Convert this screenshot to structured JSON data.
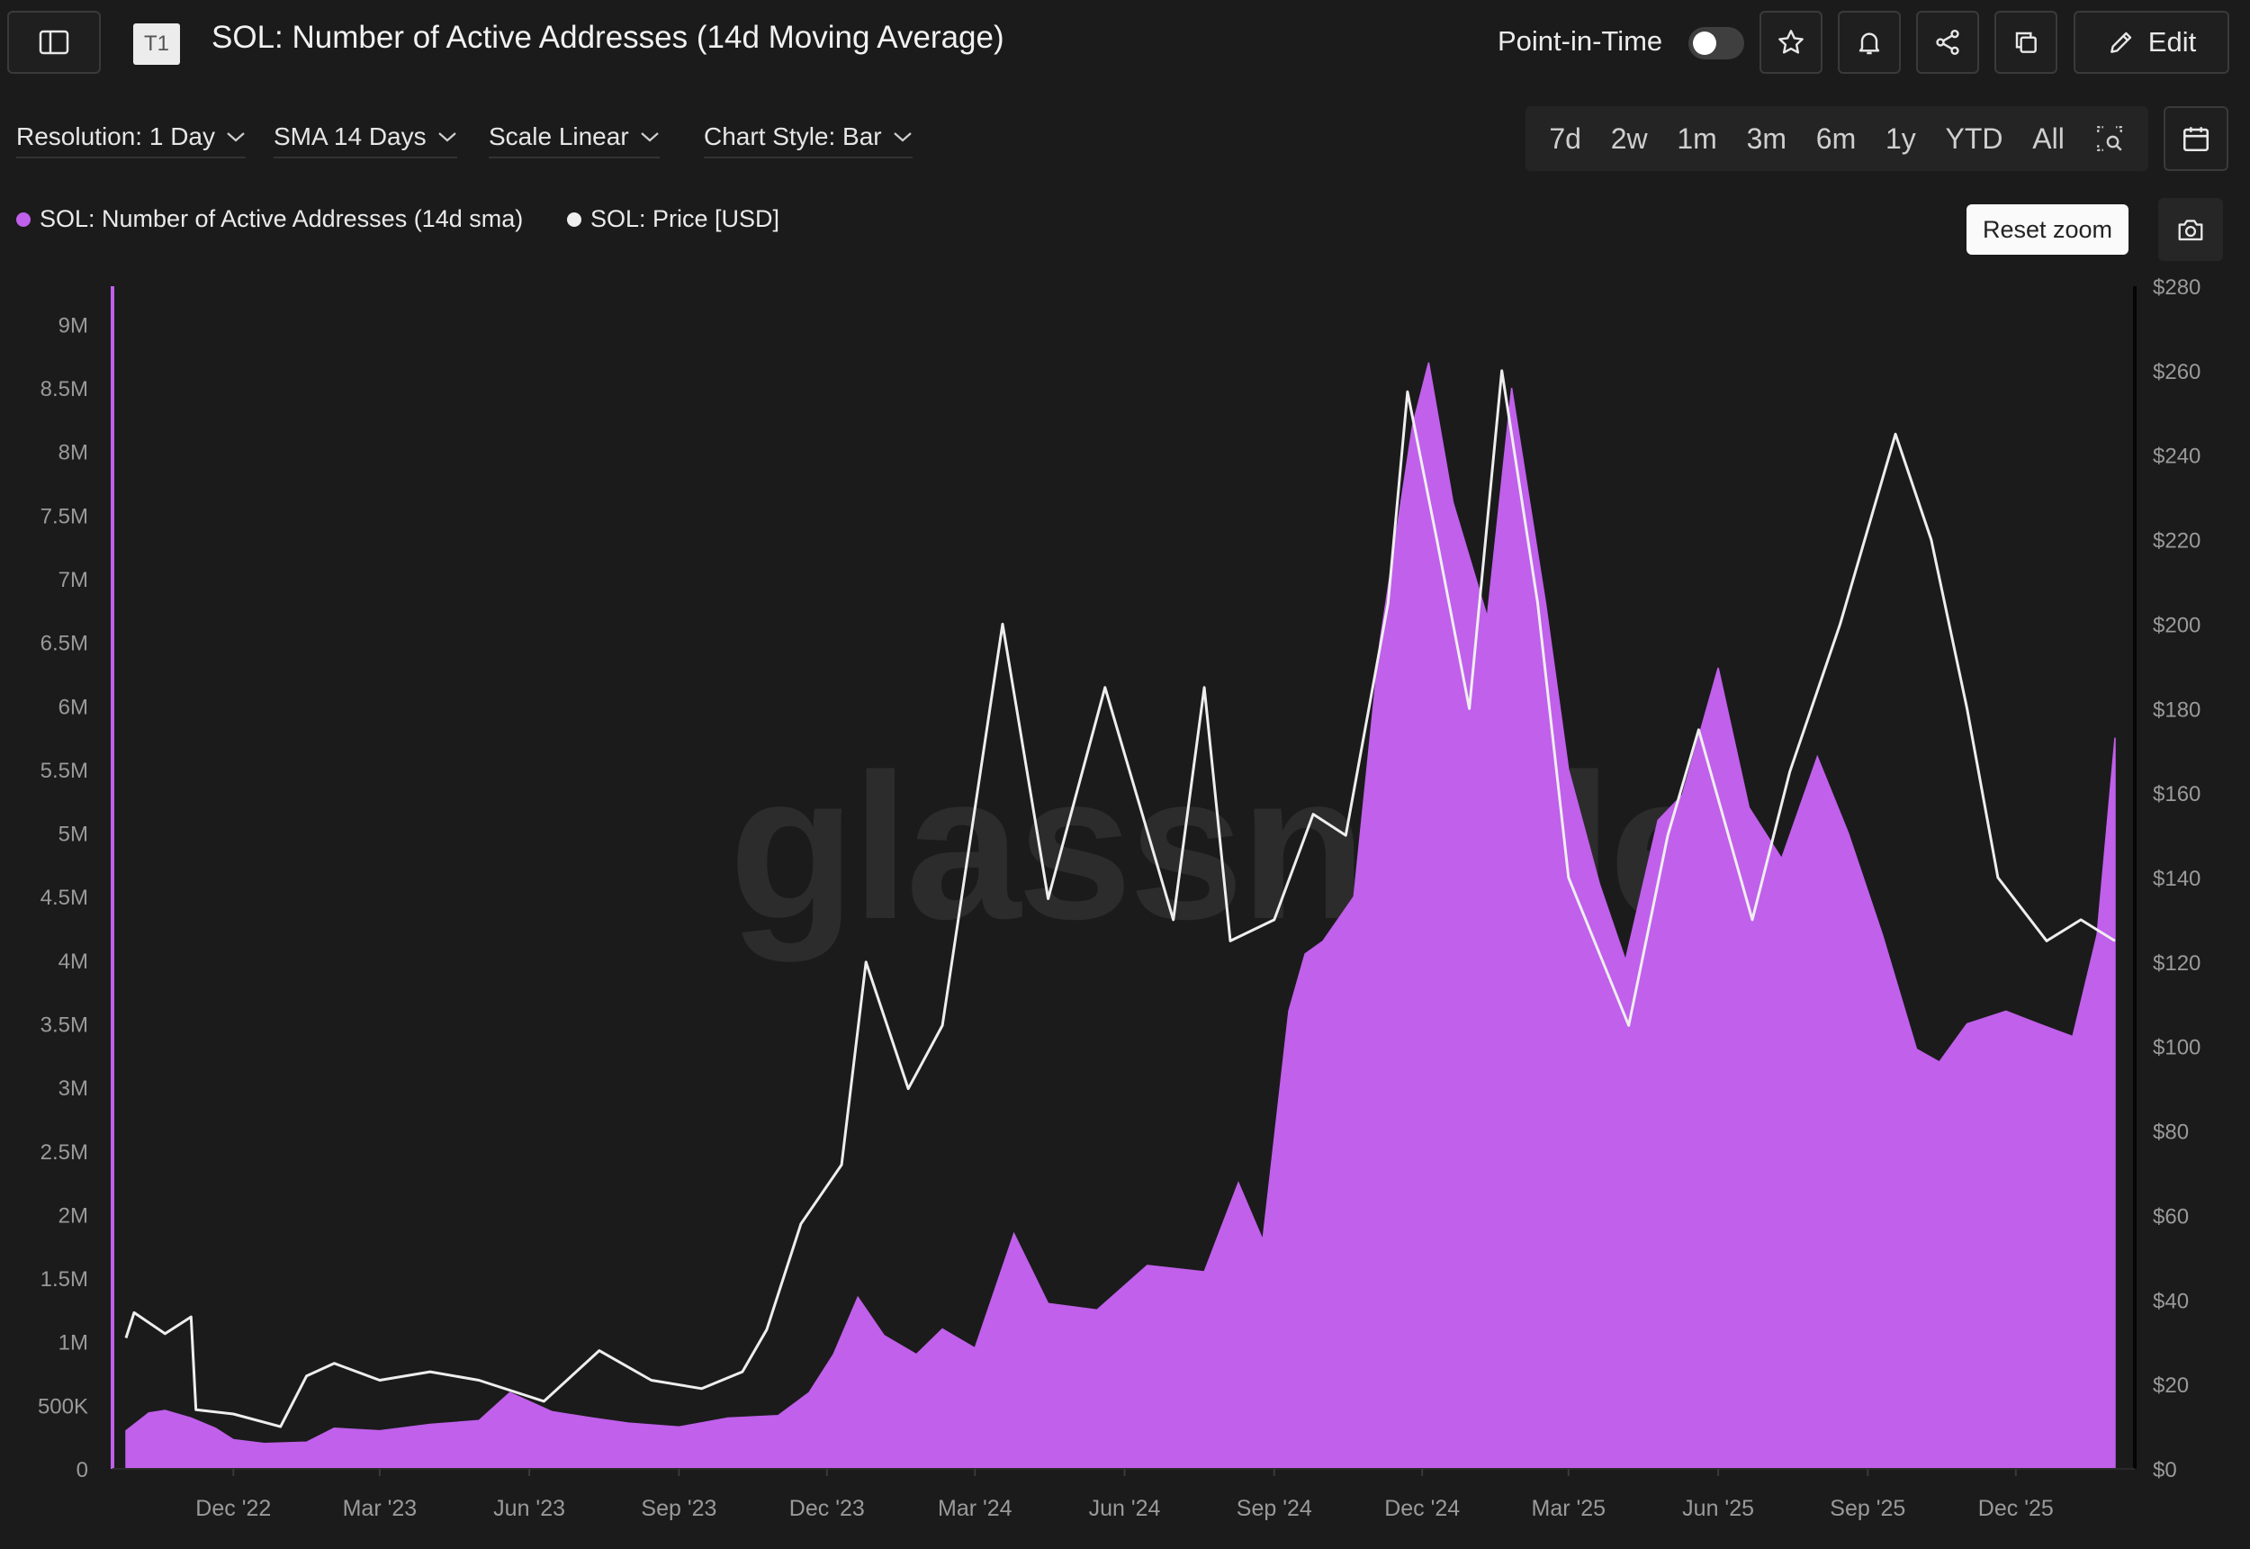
{
  "header": {
    "title": "SOL: Number of Active Addresses (14d Moving Average)",
    "tag": "T1",
    "point_in_time_label": "Point-in-Time",
    "edit_label": "Edit"
  },
  "filters": {
    "resolution": "Resolution: 1 Day",
    "sma": "SMA 14 Days",
    "scale": "Scale Linear",
    "chart_style": "Chart Style: Bar"
  },
  "ranges": [
    "7d",
    "2w",
    "1m",
    "3m",
    "6m",
    "1y",
    "YTD",
    "All"
  ],
  "legend": {
    "series1": "SOL: Number of Active Addresses (14d sma)",
    "series2": "SOL: Price [USD]"
  },
  "reset_zoom": "Reset zoom",
  "watermark": "glassnode",
  "colors": {
    "addresses": "#c060eb",
    "price": "#eeeeee",
    "background": "#1b1b1b"
  },
  "chart_data": {
    "type": "area",
    "x_tick_labels": [
      "Dec '22",
      "Mar '23",
      "Jun '23",
      "Sep '23",
      "Dec '23",
      "Mar '24",
      "Jun '24",
      "Sep '24",
      "Dec '24",
      "Mar '25",
      "Jun '25",
      "Sep '25",
      "Dec '25"
    ],
    "x_range": [
      "2022-09-26",
      "2026-01-31"
    ],
    "y_left": {
      "ticks": [
        "0",
        "500K",
        "1M",
        "1.5M",
        "2M",
        "2.5M",
        "3M",
        "3.5M",
        "4M",
        "4.5M",
        "5M",
        "5.5M",
        "6M",
        "6.5M",
        "7M",
        "7.5M",
        "8M",
        "8.5M",
        "9M"
      ],
      "range": [
        0,
        9300000
      ]
    },
    "y_right": {
      "ticks": [
        "$0",
        "$20",
        "$40",
        "$60",
        "$80",
        "$100",
        "$120",
        "$140",
        "$160",
        "$180",
        "$200",
        "$220",
        "$240",
        "$260",
        "$280"
      ],
      "range": [
        0,
        280
      ]
    },
    "series": [
      {
        "name": "SOL: Number of Active Addresses (14d sma)",
        "axis": "left",
        "points": [
          [
            "2022-09-26",
            300000
          ],
          [
            "2022-10-10",
            440000
          ],
          [
            "2022-10-20",
            460000
          ],
          [
            "2022-11-05",
            400000
          ],
          [
            "2022-11-20",
            320000
          ],
          [
            "2022-12-01",
            230000
          ],
          [
            "2022-12-20",
            200000
          ],
          [
            "2023-01-15",
            210000
          ],
          [
            "2023-02-01",
            320000
          ],
          [
            "2023-03-01",
            300000
          ],
          [
            "2023-04-01",
            350000
          ],
          [
            "2023-05-01",
            380000
          ],
          [
            "2023-05-20",
            600000
          ],
          [
            "2023-06-15",
            450000
          ],
          [
            "2023-07-10",
            400000
          ],
          [
            "2023-08-01",
            360000
          ],
          [
            "2023-09-01",
            330000
          ],
          [
            "2023-10-01",
            400000
          ],
          [
            "2023-11-01",
            420000
          ],
          [
            "2023-11-20",
            600000
          ],
          [
            "2023-12-05",
            900000
          ],
          [
            "2023-12-20",
            1350000
          ],
          [
            "2024-01-05",
            1050000
          ],
          [
            "2024-01-25",
            900000
          ],
          [
            "2024-02-10",
            1100000
          ],
          [
            "2024-03-01",
            950000
          ],
          [
            "2024-03-25",
            1850000
          ],
          [
            "2024-04-15",
            1300000
          ],
          [
            "2024-05-15",
            1250000
          ],
          [
            "2024-06-15",
            1600000
          ],
          [
            "2024-07-20",
            1550000
          ],
          [
            "2024-08-10",
            2250000
          ],
          [
            "2024-08-25",
            1800000
          ],
          [
            "2024-09-10",
            3600000
          ],
          [
            "2024-09-20",
            4050000
          ],
          [
            "2024-10-01",
            4150000
          ],
          [
            "2024-10-20",
            4500000
          ],
          [
            "2024-11-05",
            6500000
          ],
          [
            "2024-11-25",
            8200000
          ],
          [
            "2024-12-05",
            8700000
          ],
          [
            "2024-12-20",
            7600000
          ],
          [
            "2025-01-10",
            6700000
          ],
          [
            "2025-01-25",
            8500000
          ],
          [
            "2025-02-15",
            6800000
          ],
          [
            "2025-03-01",
            5500000
          ],
          [
            "2025-03-20",
            4600000
          ],
          [
            "2025-04-05",
            4000000
          ],
          [
            "2025-04-25",
            5100000
          ],
          [
            "2025-05-10",
            5300000
          ],
          [
            "2025-06-01",
            6300000
          ],
          [
            "2025-06-20",
            5200000
          ],
          [
            "2025-07-10",
            4800000
          ],
          [
            "2025-08-01",
            5600000
          ],
          [
            "2025-08-20",
            5000000
          ],
          [
            "2025-09-10",
            4200000
          ],
          [
            "2025-10-01",
            3300000
          ],
          [
            "2025-10-15",
            3200000
          ],
          [
            "2025-11-01",
            3500000
          ],
          [
            "2025-11-25",
            3600000
          ],
          [
            "2025-12-15",
            3500000
          ],
          [
            "2026-01-05",
            3400000
          ],
          [
            "2026-01-20",
            4200000
          ],
          [
            "2026-01-31",
            5750000
          ]
        ]
      },
      {
        "name": "SOL: Price [USD]",
        "axis": "right",
        "points": [
          [
            "2022-09-26",
            31
          ],
          [
            "2022-10-01",
            37
          ],
          [
            "2022-10-20",
            32
          ],
          [
            "2022-11-05",
            36
          ],
          [
            "2022-11-08",
            14
          ],
          [
            "2022-12-01",
            13
          ],
          [
            "2022-12-30",
            10
          ],
          [
            "2023-01-15",
            22
          ],
          [
            "2023-02-01",
            25
          ],
          [
            "2023-03-01",
            21
          ],
          [
            "2023-04-01",
            23
          ],
          [
            "2023-05-01",
            21
          ],
          [
            "2023-06-10",
            16
          ],
          [
            "2023-07-14",
            28
          ],
          [
            "2023-08-15",
            21
          ],
          [
            "2023-09-15",
            19
          ],
          [
            "2023-10-10",
            23
          ],
          [
            "2023-10-25",
            33
          ],
          [
            "2023-11-15",
            58
          ],
          [
            "2023-12-10",
            72
          ],
          [
            "2023-12-25",
            120
          ],
          [
            "2024-01-20",
            90
          ],
          [
            "2024-02-10",
            105
          ],
          [
            "2024-03-18",
            200
          ],
          [
            "2024-04-15",
            135
          ],
          [
            "2024-05-20",
            185
          ],
          [
            "2024-07-01",
            130
          ],
          [
            "2024-07-20",
            185
          ],
          [
            "2024-08-05",
            125
          ],
          [
            "2024-09-01",
            130
          ],
          [
            "2024-09-25",
            155
          ],
          [
            "2024-10-15",
            150
          ],
          [
            "2024-11-10",
            205
          ],
          [
            "2024-11-22",
            255
          ],
          [
            "2024-12-10",
            220
          ],
          [
            "2024-12-30",
            180
          ],
          [
            "2025-01-19",
            260
          ],
          [
            "2025-02-10",
            205
          ],
          [
            "2025-03-01",
            140
          ],
          [
            "2025-04-07",
            105
          ],
          [
            "2025-05-01",
            150
          ],
          [
            "2025-05-20",
            175
          ],
          [
            "2025-06-22",
            130
          ],
          [
            "2025-07-15",
            165
          ],
          [
            "2025-08-15",
            200
          ],
          [
            "2025-09-18",
            245
          ],
          [
            "2025-10-10",
            220
          ],
          [
            "2025-11-01",
            180
          ],
          [
            "2025-11-20",
            140
          ],
          [
            "2025-12-20",
            125
          ],
          [
            "2026-01-10",
            130
          ],
          [
            "2026-01-31",
            125
          ]
        ]
      }
    ]
  }
}
